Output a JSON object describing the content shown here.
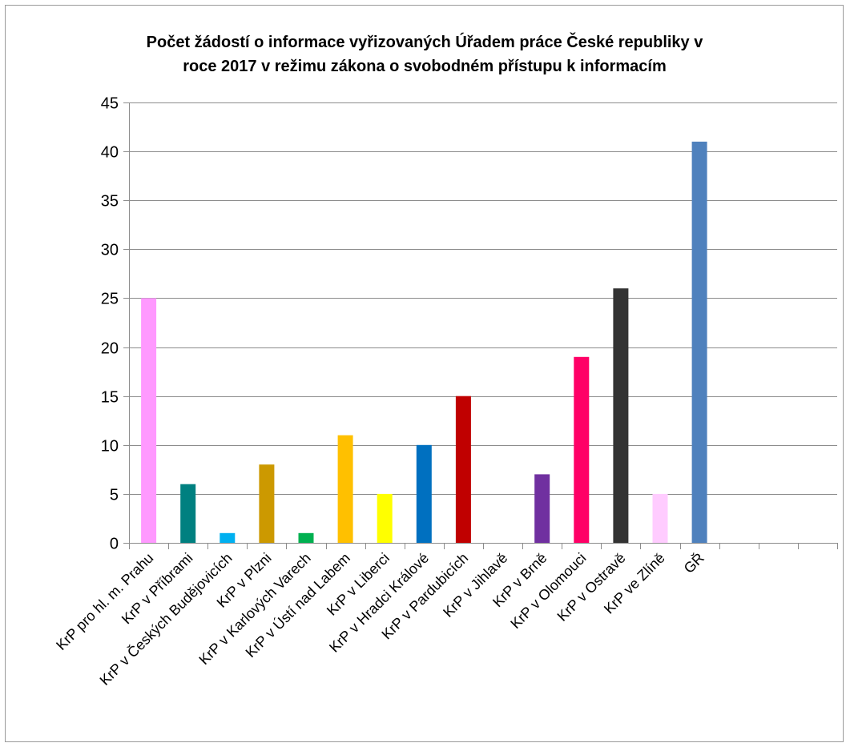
{
  "chart_data": {
    "type": "bar",
    "title_lines": [
      "Počet žádostí  o informace vyřizovaných  Úřadem práce České republiky v",
      "roce 2017 v režimu zákona  o svobodném přístupu  k informacím"
    ],
    "categories": [
      "KrP pro hl. m. Prahu",
      "KrP v Příbrami",
      "KrP v Českých Budějovicích",
      "KrP v Plzni",
      "KrP v Karlových Varech",
      "KrP v Ústí nad Labem",
      "KrP v Liberci",
      "KrP v Hradci Králové",
      "KrP v Pardubicích",
      "KrP v Jihlavě",
      "KrP v Brně",
      "KrP v Olomouci",
      "KrP v Ostravě",
      "KrP ve Zlíně",
      "GŘ",
      "",
      "",
      ""
    ],
    "values": [
      25,
      6,
      1,
      8,
      1,
      11,
      5,
      10,
      15,
      0,
      7,
      19,
      26,
      5,
      41,
      null,
      null,
      null
    ],
    "bar_colors": [
      "#ff99ff",
      "#008080",
      "#00b0f0",
      "#cc9900",
      "#00b050",
      "#ffc000",
      "#ffff00",
      "#0070c0",
      "#c00000",
      "#c00000",
      "#7030a0",
      "#ff0066",
      "#333333",
      "#ffccff",
      "#4f81bd",
      "#ffffff",
      "#ffffff",
      "#ffffff"
    ],
    "yticks": [
      0,
      5,
      10,
      15,
      20,
      25,
      30,
      35,
      40,
      45
    ],
    "ylim": [
      0,
      45
    ],
    "grid": true,
    "legend": "none",
    "colors": {
      "gridline": "#8c8c8c",
      "axis": "#8c8c8c",
      "frame": "#9a9a9a"
    }
  }
}
